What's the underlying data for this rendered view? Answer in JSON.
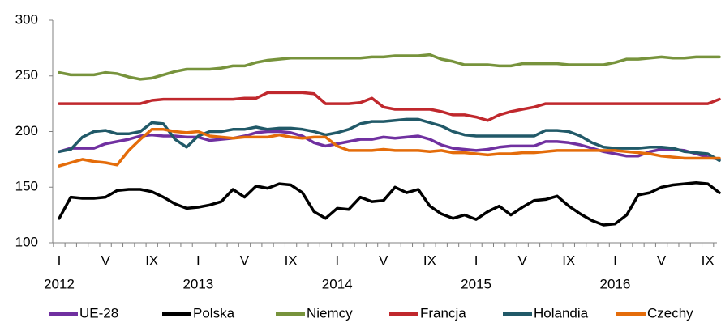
{
  "chart_data": {
    "type": "line",
    "categories": [
      "I",
      null,
      null,
      null,
      "V",
      null,
      null,
      null,
      "IX",
      null,
      null,
      null,
      "I",
      null,
      null,
      null,
      "V",
      null,
      null,
      null,
      "IX",
      null,
      null,
      null,
      "I",
      null,
      null,
      null,
      "V",
      null,
      null,
      null,
      "IX",
      null,
      null,
      null,
      "I",
      null,
      null,
      null,
      "V",
      null,
      null,
      null,
      "IX",
      null,
      null,
      null,
      "I",
      null,
      null,
      null,
      "V",
      null,
      null,
      null,
      "IX",
      null
    ],
    "year_labels": [
      "2012",
      null,
      null,
      null,
      null,
      null,
      null,
      null,
      null,
      null,
      null,
      null,
      "2013",
      null,
      null,
      null,
      null,
      null,
      null,
      null,
      null,
      null,
      null,
      null,
      "2014",
      null,
      null,
      null,
      null,
      null,
      null,
      null,
      null,
      null,
      null,
      null,
      "2015",
      null,
      null,
      null,
      null,
      null,
      null,
      null,
      null,
      null,
      null,
      null,
      "2016",
      null,
      null,
      null,
      null,
      null,
      null,
      null,
      null,
      null
    ],
    "ylim": [
      100,
      300
    ],
    "yticks": [
      100,
      150,
      200,
      250,
      300
    ],
    "legend": "bottom",
    "series": [
      {
        "name": "UE-28",
        "color": "#7030a0",
        "values": [
          182,
          185,
          185,
          185,
          189,
          191,
          193,
          196,
          197,
          196,
          196,
          195,
          195,
          192,
          193,
          194,
          196,
          199,
          200,
          200,
          199,
          196,
          190,
          187,
          189,
          191,
          193,
          193,
          195,
          194,
          195,
          196,
          193,
          188,
          185,
          184,
          183,
          184,
          186,
          187,
          187,
          187,
          191,
          191,
          190,
          188,
          185,
          182,
          180,
          178,
          178,
          182,
          184,
          184,
          183,
          180,
          177,
          175
        ]
      },
      {
        "name": "Polska",
        "color": "#000000",
        "values": [
          122,
          141,
          140,
          140,
          141,
          147,
          148,
          148,
          146,
          141,
          135,
          131,
          132,
          134,
          137,
          148,
          141,
          151,
          149,
          153,
          152,
          145,
          128,
          122,
          131,
          130,
          141,
          137,
          138,
          150,
          145,
          148,
          133,
          126,
          122,
          125,
          121,
          128,
          133,
          125,
          132,
          138,
          139,
          142,
          133,
          126,
          120,
          116,
          117,
          125,
          143,
          145,
          150,
          152,
          153,
          154,
          153,
          145
        ]
      },
      {
        "name": "Niemcy",
        "color": "#77933c",
        "values": [
          253,
          251,
          251,
          251,
          253,
          252,
          249,
          247,
          248,
          251,
          254,
          256,
          256,
          256,
          257,
          259,
          259,
          262,
          264,
          265,
          266,
          266,
          266,
          266,
          266,
          266,
          266,
          267,
          267,
          268,
          268,
          268,
          269,
          265,
          263,
          260,
          260,
          260,
          259,
          259,
          261,
          261,
          261,
          261,
          260,
          260,
          260,
          260,
          262,
          265,
          265,
          266,
          267,
          266,
          266,
          267,
          267,
          267
        ]
      },
      {
        "name": "Francja",
        "color": "#c0282d",
        "values": [
          225,
          225,
          225,
          225,
          225,
          225,
          225,
          225,
          228,
          229,
          229,
          229,
          229,
          229,
          229,
          229,
          230,
          230,
          235,
          235,
          235,
          235,
          234,
          225,
          225,
          225,
          226,
          230,
          222,
          220,
          220,
          220,
          220,
          218,
          215,
          215,
          213,
          210,
          215,
          218,
          220,
          222,
          225,
          225,
          225,
          225,
          225,
          225,
          225,
          225,
          225,
          225,
          225,
          225,
          225,
          225,
          225,
          229
        ]
      },
      {
        "name": "Holandia",
        "color": "#215968",
        "values": [
          182,
          184,
          195,
          200,
          201,
          198,
          198,
          200,
          208,
          207,
          193,
          186,
          196,
          200,
          200,
          202,
          202,
          204,
          202,
          203,
          203,
          202,
          200,
          197,
          199,
          202,
          207,
          209,
          209,
          210,
          211,
          211,
          208,
          205,
          200,
          197,
          196,
          196,
          196,
          196,
          196,
          196,
          201,
          201,
          200,
          196,
          190,
          186,
          185,
          185,
          185,
          186,
          186,
          185,
          182,
          181,
          180,
          174
        ]
      },
      {
        "name": "Czechy",
        "color": "#e46c0a",
        "values": [
          169,
          172,
          175,
          173,
          172,
          170,
          183,
          193,
          202,
          202,
          200,
          199,
          200,
          196,
          195,
          194,
          195,
          195,
          195,
          197,
          195,
          194,
          195,
          195,
          187,
          183,
          183,
          183,
          184,
          183,
          183,
          183,
          182,
          183,
          181,
          181,
          180,
          179,
          180,
          180,
          181,
          181,
          182,
          183,
          183,
          183,
          183,
          183,
          183,
          182,
          181,
          180,
          178,
          177,
          176,
          176,
          176,
          176
        ]
      }
    ]
  }
}
